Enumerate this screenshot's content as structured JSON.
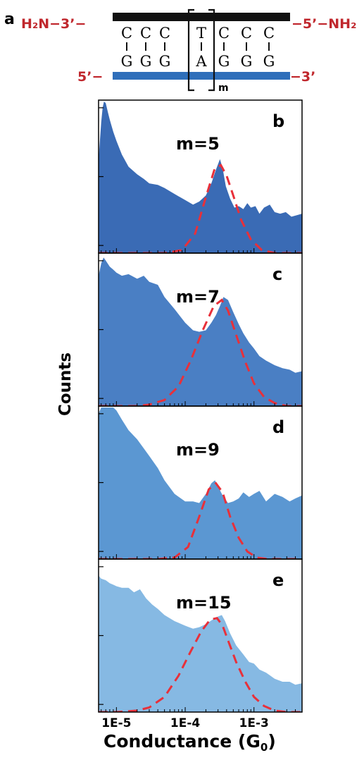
{
  "colors": {
    "dna_label": "#c0272d",
    "top_strand": "#111111",
    "bottom_strand": "#2f6fba",
    "fit_curve": "#e8303a",
    "frame": "#000000"
  },
  "diagram": {
    "panel_label": "a",
    "top_left": "H₂N−3’−",
    "top_right": "−5’−NH₂",
    "bottom_left": "5’−",
    "bottom_right": "−3’",
    "top_bases": [
      "C",
      "C",
      "C",
      "T",
      "C",
      "C",
      "C"
    ],
    "bottom_bases": [
      "G",
      "G",
      "G",
      "A",
      "G",
      "G",
      "G"
    ],
    "repeat_label": "m"
  },
  "axes": {
    "ylabel": "Counts",
    "xlabel": "Conductance (G",
    "xlabel_sub": "0",
    "xlabel_end": ")",
    "xticks": [
      {
        "value": 1e-05,
        "label": "1E-5"
      },
      {
        "value": 0.0001,
        "label": "1E-4"
      },
      {
        "value": 0.001,
        "label": "1E-3"
      }
    ]
  },
  "chart_data": [
    {
      "type": "area",
      "panel_label": "b",
      "annotation": "m=5",
      "fill_color": "#3a6bb5",
      "x_scale": "log",
      "xlim": [
        5.5e-06,
        0.005
      ],
      "ylim": [
        0,
        1.0
      ],
      "x": [
        5.5e-06,
        6e-06,
        6.3e-06,
        6.6e-06,
        7e-06,
        7.5e-06,
        8e-06,
        9e-06,
        1e-05,
        1.2e-05,
        1.5e-05,
        2e-05,
        2.5e-05,
        3e-05,
        4e-05,
        5e-05,
        7e-05,
        0.0001,
        0.00013,
        0.00016,
        0.0002,
        0.00024,
        0.00028,
        0.00032,
        0.00035,
        0.00039,
        0.00045,
        0.00052,
        0.0006,
        0.0007,
        0.0008,
        0.0009,
        0.00105,
        0.0012,
        0.0014,
        0.0017,
        0.002,
        0.0024,
        0.0029,
        0.0035,
        0.0042,
        0.005
      ],
      "y": [
        0.62,
        0.86,
        0.96,
        1.0,
        0.99,
        0.93,
        0.88,
        0.8,
        0.74,
        0.65,
        0.57,
        0.52,
        0.49,
        0.46,
        0.45,
        0.43,
        0.39,
        0.35,
        0.32,
        0.34,
        0.38,
        0.46,
        0.55,
        0.62,
        0.56,
        0.44,
        0.36,
        0.3,
        0.31,
        0.29,
        0.33,
        0.3,
        0.31,
        0.26,
        0.3,
        0.32,
        0.27,
        0.26,
        0.27,
        0.24,
        0.25,
        0.26
      ],
      "fit_x": [
        5.5e-06,
        1e-05,
        2e-05,
        5e-05,
        9e-05,
        0.00014,
        0.0002,
        0.00027,
        0.00033,
        0.0004,
        0.0005,
        0.00065,
        0.0009,
        0.0013,
        0.002,
        0.005
      ],
      "fit_y": [
        0.0,
        0.0,
        0.0,
        0.0,
        0.02,
        0.13,
        0.37,
        0.56,
        0.58,
        0.51,
        0.38,
        0.22,
        0.09,
        0.02,
        0.0,
        0.0
      ]
    },
    {
      "type": "area",
      "panel_label": "c",
      "annotation": "m=7",
      "fill_color": "#4a7fc4",
      "x_scale": "log",
      "xlim": [
        5.5e-06,
        0.005
      ],
      "ylim": [
        0,
        1.0
      ],
      "x": [
        5.5e-06,
        6e-06,
        6.5e-06,
        7e-06,
        8e-06,
        9e-06,
        1e-05,
        1.2e-05,
        1.5e-05,
        2e-05,
        2.5e-05,
        3e-05,
        4e-05,
        5e-05,
        7e-05,
        0.0001,
        0.00013,
        0.00016,
        0.0002,
        0.00024,
        0.00028,
        0.00032,
        0.00036,
        0.00042,
        0.0005,
        0.0006,
        0.0007,
        0.00085,
        0.001,
        0.0012,
        0.0015,
        0.002,
        0.0026,
        0.0033,
        0.004,
        0.005
      ],
      "y": [
        0.86,
        0.94,
        0.98,
        0.96,
        0.92,
        0.9,
        0.88,
        0.86,
        0.87,
        0.84,
        0.86,
        0.82,
        0.8,
        0.72,
        0.64,
        0.55,
        0.5,
        0.49,
        0.5,
        0.55,
        0.6,
        0.66,
        0.72,
        0.7,
        0.62,
        0.54,
        0.48,
        0.42,
        0.38,
        0.33,
        0.3,
        0.27,
        0.25,
        0.24,
        0.22,
        0.23
      ],
      "fit_x": [
        5.5e-06,
        1e-05,
        2e-05,
        3e-05,
        5e-05,
        8e-05,
        0.00012,
        0.00018,
        0.00026,
        0.00034,
        0.00042,
        0.00055,
        0.00075,
        0.001,
        0.0014,
        0.002,
        0.003,
        0.005
      ],
      "fit_y": [
        0.0,
        0.0,
        0.0,
        0.01,
        0.04,
        0.13,
        0.3,
        0.5,
        0.66,
        0.7,
        0.63,
        0.47,
        0.29,
        0.15,
        0.06,
        0.02,
        0.0,
        0.0
      ]
    },
    {
      "type": "area",
      "panel_label": "d",
      "annotation": "m=9",
      "fill_color": "#5b97d2",
      "x_scale": "log",
      "xlim": [
        5.5e-06,
        0.005
      ],
      "ylim": [
        0,
        1.0
      ],
      "x": [
        5.5e-06,
        6e-06,
        7e-06,
        8e-06,
        9e-06,
        1e-05,
        1.2e-05,
        1.5e-05,
        2e-05,
        2.5e-05,
        3e-05,
        4e-05,
        5e-05,
        7e-05,
        0.0001,
        0.00013,
        0.00016,
        0.0002,
        0.00024,
        0.00027,
        0.0003,
        0.00035,
        0.00042,
        0.0005,
        0.0006,
        0.0007,
        0.00085,
        0.001,
        0.0012,
        0.0015,
        0.002,
        0.0026,
        0.0033,
        0.004,
        0.005
      ],
      "y": [
        0.96,
        1.0,
        1.0,
        1.0,
        1.0,
        0.98,
        0.92,
        0.85,
        0.79,
        0.73,
        0.68,
        0.6,
        0.52,
        0.43,
        0.38,
        0.38,
        0.37,
        0.43,
        0.5,
        0.52,
        0.48,
        0.42,
        0.37,
        0.38,
        0.4,
        0.44,
        0.41,
        0.43,
        0.45,
        0.38,
        0.43,
        0.41,
        0.38,
        0.4,
        0.42
      ],
      "fit_x": [
        5.5e-06,
        1e-05,
        2e-05,
        4e-05,
        7e-05,
        0.00011,
        0.00016,
        0.00022,
        0.00028,
        0.00035,
        0.00045,
        0.0006,
        0.0008,
        0.0011,
        0.0016,
        0.0025,
        0.005
      ],
      "fit_y": [
        0.0,
        0.0,
        0.0,
        0.0,
        0.01,
        0.08,
        0.28,
        0.46,
        0.5,
        0.44,
        0.28,
        0.14,
        0.05,
        0.01,
        0.0,
        0.0,
        0.0
      ]
    },
    {
      "type": "area",
      "panel_label": "e",
      "annotation": "m=15",
      "fill_color": "#86b9e3",
      "x_scale": "log",
      "xlim": [
        5.5e-06,
        0.005
      ],
      "ylim": [
        0,
        1.0
      ],
      "x": [
        5.5e-06,
        6e-06,
        7e-06,
        8e-06,
        9e-06,
        1e-05,
        1.2e-05,
        1.5e-05,
        1.8e-05,
        2.2e-05,
        2.7e-05,
        3.3e-05,
        4e-05,
        5e-05,
        7e-05,
        0.0001,
        0.00013,
        0.00016,
        0.0002,
        0.00025,
        0.0003,
        0.00034,
        0.00038,
        0.00045,
        0.00055,
        0.0007,
        0.00085,
        0.001,
        0.0012,
        0.0015,
        0.002,
        0.0026,
        0.0033,
        0.004,
        0.005
      ],
      "y": [
        0.9,
        0.88,
        0.87,
        0.85,
        0.84,
        0.83,
        0.82,
        0.82,
        0.79,
        0.81,
        0.75,
        0.71,
        0.68,
        0.64,
        0.6,
        0.57,
        0.55,
        0.56,
        0.58,
        0.61,
        0.63,
        0.64,
        0.6,
        0.52,
        0.44,
        0.38,
        0.33,
        0.32,
        0.28,
        0.26,
        0.22,
        0.2,
        0.2,
        0.18,
        0.19
      ],
      "fit_x": [
        5.5e-06,
        1e-05,
        2e-05,
        3e-05,
        5e-05,
        8e-05,
        0.00012,
        0.00017,
        0.00023,
        0.00029,
        0.00035,
        0.00043,
        0.00055,
        0.00075,
        0.001,
        0.0014,
        0.002,
        0.003,
        0.005
      ],
      "fit_y": [
        0.0,
        0.0,
        0.01,
        0.03,
        0.1,
        0.24,
        0.4,
        0.53,
        0.61,
        0.62,
        0.57,
        0.46,
        0.33,
        0.2,
        0.1,
        0.04,
        0.01,
        0.0,
        0.0
      ]
    }
  ]
}
